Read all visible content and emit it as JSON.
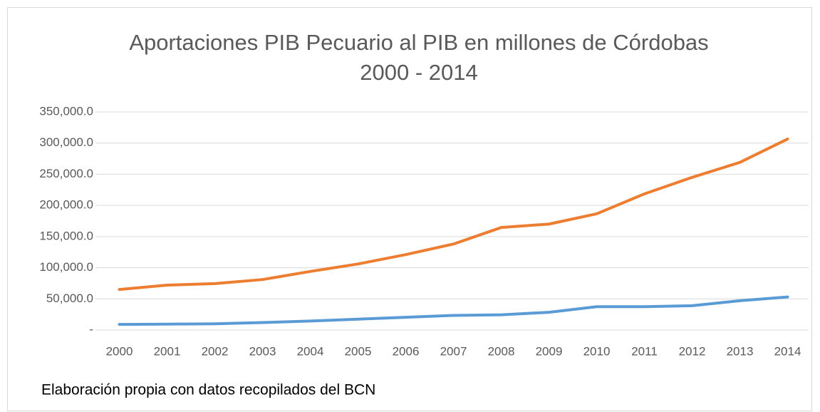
{
  "chart_data": {
    "type": "line",
    "title": "Aportaciones PIB Pecuario al PIB en millones de Córdobas",
    "subtitle": "2000 - 2014",
    "annotation": "Elaboración propia con datos recopilados del BCN",
    "categories": [
      "2000",
      "2001",
      "2002",
      "2003",
      "2004",
      "2005",
      "2006",
      "2007",
      "2008",
      "2009",
      "2010",
      "2011",
      "2012",
      "2013",
      "2014"
    ],
    "series": [
      {
        "color": "#5b9bd5",
        "values": [
          9000,
          9500,
          10000,
          12000,
          14500,
          17500,
          20500,
          23500,
          24500,
          28500,
          37500,
          37500,
          39000,
          47000,
          53000
        ]
      },
      {
        "color": "#ed7d31",
        "values": [
          65000,
          72000,
          74500,
          81000,
          94000,
          106000,
          121000,
          138000,
          164500,
          170000,
          186500,
          218500,
          245000,
          269000,
          306500
        ]
      }
    ],
    "ylim": [
      0,
      350000
    ],
    "yticks": [
      {
        "value": 0,
        "label": "-"
      },
      {
        "value": 50000,
        "label": "50,000.0"
      },
      {
        "value": 100000,
        "label": "100,000.0"
      },
      {
        "value": 150000,
        "label": "150,000.0"
      },
      {
        "value": 200000,
        "label": "200,000.0"
      },
      {
        "value": 250000,
        "label": "250,000.0"
      },
      {
        "value": 300000,
        "label": "300,000.0"
      },
      {
        "value": 350000,
        "label": "350,000.0"
      }
    ],
    "grid": true
  }
}
